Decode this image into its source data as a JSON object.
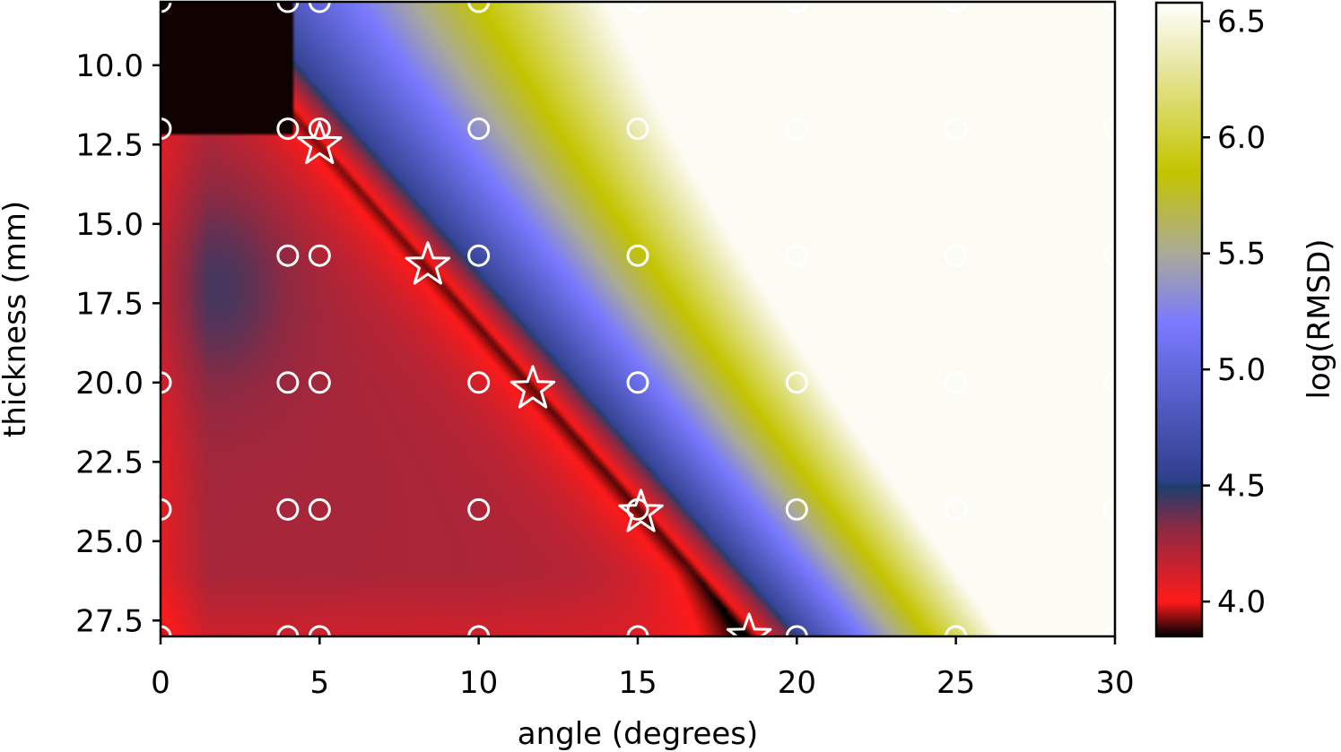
{
  "chart_data": {
    "type": "heatmap",
    "xlabel": "angle (degrees)",
    "ylabel": "thickness (mm)",
    "xlim": [
      0,
      30
    ],
    "ylim": [
      28,
      8
    ],
    "x_ticks": [
      {
        "value": 0,
        "label": "0"
      },
      {
        "value": 5,
        "label": "5"
      },
      {
        "value": 10,
        "label": "10"
      },
      {
        "value": 15,
        "label": "15"
      },
      {
        "value": 20,
        "label": "20"
      },
      {
        "value": 25,
        "label": "25"
      },
      {
        "value": 30,
        "label": "30"
      }
    ],
    "y_ticks": [
      {
        "value": 10,
        "label": "10.0"
      },
      {
        "value": 12.5,
        "label": "12.5"
      },
      {
        "value": 15,
        "label": "15.0"
      },
      {
        "value": 17.5,
        "label": "17.5"
      },
      {
        "value": 20,
        "label": "20.0"
      },
      {
        "value": 22.5,
        "label": "22.5"
      },
      {
        "value": 25,
        "label": "25.0"
      },
      {
        "value": 27.5,
        "label": "27.5"
      }
    ],
    "colorbar": {
      "label": "log(RMSD)",
      "range": [
        3.85,
        6.58
      ],
      "ticks": [
        {
          "value": 4.0,
          "label": "4.0"
        },
        {
          "value": 4.5,
          "label": "4.5"
        },
        {
          "value": 5.0,
          "label": "5.0"
        },
        {
          "value": 5.5,
          "label": "5.5"
        },
        {
          "value": 6.0,
          "label": "6.0"
        },
        {
          "value": 6.5,
          "label": "6.5"
        }
      ],
      "stops": [
        {
          "v": 3.85,
          "color": "#000000"
        },
        {
          "v": 4.0,
          "color": "#ff1a1a"
        },
        {
          "v": 4.32,
          "color": "#8a2a44"
        },
        {
          "v": 4.5,
          "color": "#1c3f6e"
        },
        {
          "v": 4.52,
          "color": "#2e3f8a"
        },
        {
          "v": 5.2,
          "color": "#7a7aff"
        },
        {
          "v": 5.5,
          "color": "#aaaa99"
        },
        {
          "v": 5.85,
          "color": "#c4c400"
        },
        {
          "v": 6.3,
          "color": "#e6e6a0"
        },
        {
          "v": 6.58,
          "color": "#ffffff"
        }
      ]
    },
    "sample_points": [
      {
        "x": 0,
        "y": 8
      },
      {
        "x": 4,
        "y": 8
      },
      {
        "x": 5,
        "y": 8
      },
      {
        "x": 10,
        "y": 8
      },
      {
        "x": 15,
        "y": 8
      },
      {
        "x": 20,
        "y": 8
      },
      {
        "x": 25,
        "y": 8
      },
      {
        "x": 30,
        "y": 8
      },
      {
        "x": 0,
        "y": 12
      },
      {
        "x": 4,
        "y": 12
      },
      {
        "x": 5,
        "y": 12
      },
      {
        "x": 10,
        "y": 12
      },
      {
        "x": 15,
        "y": 12
      },
      {
        "x": 20,
        "y": 12
      },
      {
        "x": 25,
        "y": 12
      },
      {
        "x": 30,
        "y": 12
      },
      {
        "x": 4,
        "y": 16
      },
      {
        "x": 5,
        "y": 16
      },
      {
        "x": 10,
        "y": 16
      },
      {
        "x": 15,
        "y": 16
      },
      {
        "x": 20,
        "y": 16
      },
      {
        "x": 25,
        "y": 16
      },
      {
        "x": 30,
        "y": 16
      },
      {
        "x": 0,
        "y": 20
      },
      {
        "x": 4,
        "y": 20
      },
      {
        "x": 5,
        "y": 20
      },
      {
        "x": 10,
        "y": 20
      },
      {
        "x": 15,
        "y": 20
      },
      {
        "x": 20,
        "y": 20
      },
      {
        "x": 25,
        "y": 20
      },
      {
        "x": 30,
        "y": 20
      },
      {
        "x": 0,
        "y": 24
      },
      {
        "x": 4,
        "y": 24
      },
      {
        "x": 5,
        "y": 24
      },
      {
        "x": 10,
        "y": 24
      },
      {
        "x": 15,
        "y": 24
      },
      {
        "x": 20,
        "y": 24
      },
      {
        "x": 25,
        "y": 24
      },
      {
        "x": 30,
        "y": 24
      },
      {
        "x": 0,
        "y": 28
      },
      {
        "x": 4,
        "y": 28
      },
      {
        "x": 5,
        "y": 28
      },
      {
        "x": 10,
        "y": 28
      },
      {
        "x": 15,
        "y": 28
      },
      {
        "x": 20,
        "y": 28
      },
      {
        "x": 25,
        "y": 28
      },
      {
        "x": 30,
        "y": 28
      }
    ],
    "optimum_points": [
      {
        "x": 5.0,
        "y": 12.5
      },
      {
        "x": 8.4,
        "y": 16.3
      },
      {
        "x": 11.7,
        "y": 20.2
      },
      {
        "x": 15.1,
        "y": 24.1
      },
      {
        "x": 18.5,
        "y": 28.0
      }
    ]
  }
}
